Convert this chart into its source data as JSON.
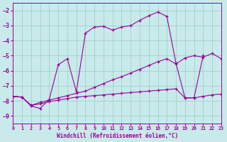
{
  "xlabel": "Windchill (Refroidissement éolien,°C)",
  "bg_color": "#c8eaea",
  "grid_color": "#9ec8c8",
  "line_color": "#990099",
  "xlim": [
    0,
    23
  ],
  "ylim": [
    -9.5,
    -1.5
  ],
  "yticks": [
    -9,
    -8,
    -7,
    -6,
    -5,
    -4,
    -3,
    -2
  ],
  "xticks": [
    0,
    1,
    2,
    3,
    4,
    5,
    6,
    7,
    8,
    9,
    10,
    11,
    12,
    13,
    14,
    15,
    16,
    17,
    18,
    19,
    20,
    21,
    22,
    23
  ],
  "line_main_x": [
    0,
    1,
    2,
    3,
    4,
    5,
    6,
    7,
    8,
    9,
    10,
    11,
    12,
    13,
    14,
    15,
    16,
    17,
    18,
    19,
    20,
    21
  ],
  "line_main_y": [
    -7.7,
    -7.75,
    -8.35,
    -8.5,
    -7.9,
    -5.6,
    -5.2,
    -7.4,
    -3.5,
    -3.1,
    -3.05,
    -3.3,
    -3.1,
    -3.0,
    -2.65,
    -2.35,
    -2.1,
    -2.4,
    -5.5,
    -7.8,
    -7.8,
    -5.0
  ],
  "line_diag_x": [
    0,
    1,
    2,
    3,
    4,
    5,
    6,
    7,
    8,
    9,
    10,
    11,
    12,
    13,
    14,
    15,
    16,
    17,
    18,
    19,
    20,
    21,
    22,
    23
  ],
  "line_diag_y": [
    -7.7,
    -7.75,
    -8.3,
    -8.1,
    -7.95,
    -7.8,
    -7.65,
    -7.5,
    -7.35,
    -7.1,
    -6.85,
    -6.6,
    -6.4,
    -6.15,
    -5.9,
    -5.65,
    -5.4,
    -5.2,
    -5.55,
    -5.15,
    -5.0,
    -5.1,
    -4.85,
    -5.2
  ],
  "line_flat_x": [
    0,
    1,
    2,
    3,
    4,
    5,
    6,
    7,
    8,
    9,
    10,
    11,
    12,
    13,
    14,
    15,
    16,
    17,
    18,
    19,
    20,
    21,
    22,
    23
  ],
  "line_flat_y": [
    -7.7,
    -7.75,
    -8.3,
    -8.2,
    -8.05,
    -7.95,
    -7.85,
    -7.75,
    -7.7,
    -7.65,
    -7.6,
    -7.55,
    -7.5,
    -7.45,
    -7.4,
    -7.35,
    -7.3,
    -7.25,
    -7.2,
    -7.8,
    -7.8,
    -7.7,
    -7.6,
    -7.55
  ]
}
